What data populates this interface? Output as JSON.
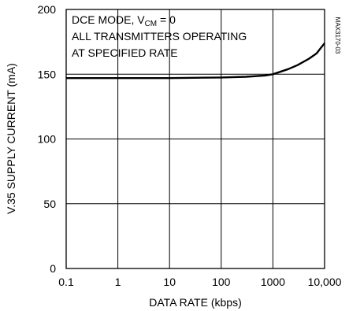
{
  "chart_data": {
    "type": "line",
    "title": "",
    "xlabel": "DATA RATE (kbps)",
    "ylabel": "V.35 SUPPLY CURRENT (mA)",
    "xscale": "log",
    "xlim": [
      0.1,
      10000
    ],
    "ylim": [
      0,
      200
    ],
    "grid": true,
    "x_ticks": [
      0.1,
      1,
      10,
      100,
      1000,
      10000
    ],
    "x_tick_labels": [
      "0.1",
      "1",
      "10",
      "100",
      "1000",
      "10,000"
    ],
    "y_ticks": [
      0,
      50,
      100,
      150,
      200
    ],
    "y_tick_labels": [
      "0",
      "50",
      "100",
      "150",
      "200"
    ],
    "annotation": {
      "line1_prefix": "DCE MODE, V",
      "line1_sub": "CM",
      "line1_suffix": " = 0",
      "line2": "ALL TRANSMITTERS OPERATING",
      "line3": "AT SPECIFIED RATE"
    },
    "part_number": "MAX3170-03",
    "series": [
      {
        "color": "#000000",
        "x": [
          0.1,
          1,
          10,
          100,
          300,
          700,
          1000,
          2000,
          3000,
          5000,
          7000,
          10000
        ],
        "y": [
          147,
          147,
          147,
          147.5,
          148,
          149,
          150,
          154,
          157,
          162,
          166,
          174
        ]
      }
    ]
  }
}
